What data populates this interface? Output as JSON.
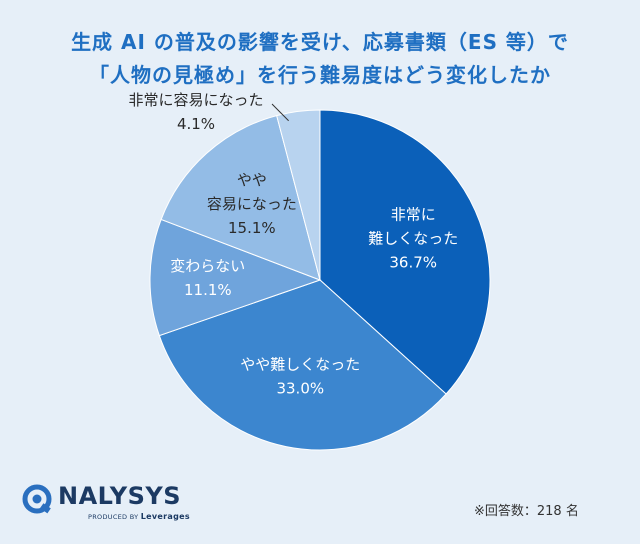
{
  "chart_data": {
    "type": "pie",
    "title": [
      "生成 AI の普及の影響を受け、応募書類（ES 等）で",
      "「人物の見極め」を行う難易度はどう変化したか"
    ],
    "slices": [
      {
        "label": [
          "非常に",
          "難しくなった"
        ],
        "value": 36.7,
        "value_label": "36.7%",
        "color": "#0b60b9",
        "text_color": "#ffffff"
      },
      {
        "label": [
          "やや難しくなった"
        ],
        "value": 33.0,
        "value_label": "33.0%",
        "color": "#3c86cf",
        "text_color": "#ffffff"
      },
      {
        "label": [
          "変わらない"
        ],
        "value": 11.1,
        "value_label": "11.1%",
        "color": "#6fa4dc",
        "text_color": "#ffffff"
      },
      {
        "label": [
          "やや",
          "容易になった"
        ],
        "value": 15.1,
        "value_label": "15.1%",
        "color": "#93bce6",
        "text_color": "#2a2a2a"
      },
      {
        "label": [
          "非常に容易になった"
        ],
        "value": 4.1,
        "value_label": "4.1%",
        "color": "#b8d3ef",
        "text_color": "#2a2a2a"
      }
    ]
  },
  "logo": {
    "name": "NALYSYS",
    "tagline": "PRODUCED BY",
    "brand": "Leverages"
  },
  "footnote": "※回答数：218 名"
}
